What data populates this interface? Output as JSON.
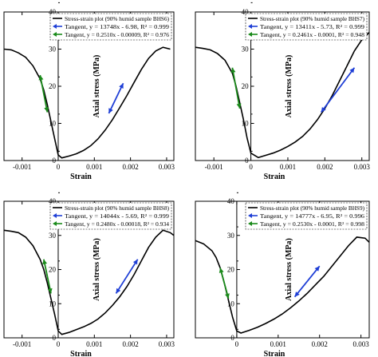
{
  "chart_data": [
    {
      "type": "line",
      "xlabel": "Strain",
      "ylabel": "Axial stress (MPa)",
      "xlim": [
        -0.0015,
        0.0032
      ],
      "ylim": [
        0,
        40
      ],
      "x_ticks": [
        "-0.001",
        "0",
        "0.001",
        "0.002",
        "0.003"
      ],
      "y_ticks": [
        "0",
        "10",
        "20",
        "30",
        "40"
      ],
      "legend": [
        "Stress-strain plot (90% humid sample BHS6)",
        "Tangent, y = 13748x - 6.98, R² = 0.999",
        "Tangent, y = 0.2510x - 0.00009, R² = 0.976"
      ],
      "series": [
        {
          "name": "Stress-strain plot (90% humid sample BHS6)",
          "color": "#000000",
          "x": [
            0.0031,
            0.0029,
            0.0027,
            0.0025,
            0.0023,
            0.0021,
            0.0019,
            0.0017,
            0.0015,
            0.0013,
            0.0011,
            0.0009,
            0.0007,
            0.0005,
            0.0003,
            0.0001,
            0.0,
            -0.0001,
            -0.0002,
            -0.0003,
            -0.0004,
            -0.0005,
            -0.0007,
            -0.0009,
            -0.0011,
            -0.0013,
            -0.0015
          ],
          "y": [
            30.0,
            30.5,
            29.5,
            27.5,
            24.5,
            21.0,
            17.5,
            14.2,
            11.0,
            8.2,
            5.8,
            4.0,
            2.7,
            1.8,
            1.2,
            0.7,
            1.5,
            6.0,
            10.5,
            15.0,
            19.0,
            22.0,
            25.5,
            27.8,
            29.0,
            29.8,
            30.0
          ]
        },
        {
          "name": "Tangent, y = 13748x - 6.98, R² = 0.999",
          "color": "#1f3fd6",
          "x": [
            0.0014,
            0.0018
          ],
          "y": [
            12.7,
            20.8
          ]
        },
        {
          "name": "Tangent, y = 0.2510x - 0.00009, R² = 0.976",
          "color": "#1a8a1a",
          "x": [
            -0.0003,
            -0.0005
          ],
          "y": [
            13.0,
            23.0
          ]
        }
      ]
    },
    {
      "type": "line",
      "xlabel": "Strain",
      "ylabel": "Axial stress (MPa)",
      "xlim": [
        -0.0015,
        0.0032
      ],
      "ylim": [
        0,
        40
      ],
      "x_ticks": [
        "-0.001",
        "0",
        "0.001",
        "0.002",
        "0.003"
      ],
      "y_ticks": [
        "0",
        "10",
        "20",
        "30",
        "40"
      ],
      "legend": [
        "Stress-strain plot (90% humid sample BHS7)",
        "Tangent, y = 13411x - 5.73, R² = 0.999",
        "Tangent, y = 0.2461x - 0.0001, R² = 0.948"
      ],
      "series": [
        {
          "name": "Stress-strain plot (90% humid sample BHS7)",
          "color": "#000000",
          "x": [
            0.0032,
            0.003,
            0.0028,
            0.0026,
            0.0024,
            0.0022,
            0.002,
            0.0018,
            0.0016,
            0.0014,
            0.0012,
            0.001,
            0.0008,
            0.0006,
            0.0004,
            0.0002,
            0.0,
            -0.0001,
            -0.0002,
            -0.0003,
            -0.0004,
            -0.0005,
            -0.0007,
            -0.0009,
            -0.0011,
            -0.0013,
            -0.0015
          ],
          "y": [
            34.5,
            32.5,
            29.5,
            25.5,
            21.5,
            17.5,
            14.0,
            11.0,
            8.5,
            6.5,
            5.0,
            3.8,
            2.8,
            2.0,
            1.4,
            0.8,
            2.0,
            6.0,
            11.0,
            15.5,
            20.0,
            23.5,
            27.0,
            28.8,
            29.8,
            30.2,
            30.5
          ]
        },
        {
          "name": "Tangent, y = 13411x - 5.73, R² = 0.999",
          "color": "#1f3fd6",
          "x": [
            0.0019,
            0.0028
          ],
          "y": [
            13.0,
            25.0
          ]
        },
        {
          "name": "Tangent, y = 0.2461x - 0.0001, R² = 0.948",
          "color": "#1a8a1a",
          "x": [
            -0.0003,
            -0.0005
          ],
          "y": [
            14.0,
            25.0
          ]
        }
      ]
    },
    {
      "type": "line",
      "xlabel": "Strain",
      "ylabel": "Axial stress (MPa)",
      "xlim": [
        -0.0015,
        0.0032
      ],
      "ylim": [
        0,
        40
      ],
      "x_ticks": [
        "-0.001",
        "0",
        "0.001",
        "0.002",
        "0.003"
      ],
      "y_ticks": [
        "0",
        "10",
        "20",
        "30",
        "40"
      ],
      "legend": [
        "Stress-strain plot (90% humid sample BHS8)",
        "Tangent, y = 14044x - 5.69, R² = 0.999",
        "Tangent, y = 0.2480x - 0.00018, R² = 0.934"
      ],
      "series": [
        {
          "name": "Stress-strain plot (90% humid sample BHS8)",
          "color": "#000000",
          "x": [
            0.0032,
            0.0031,
            0.0029,
            0.0027,
            0.0025,
            0.0023,
            0.0021,
            0.0019,
            0.0017,
            0.0015,
            0.0013,
            0.0011,
            0.0009,
            0.0007,
            0.0005,
            0.0003,
            0.0001,
            0.0,
            -0.0001,
            -0.0002,
            -0.0003,
            -0.0004,
            -0.0005,
            -0.0007,
            -0.0009,
            -0.0011,
            -0.0013,
            -0.0015
          ],
          "y": [
            30.0,
            30.8,
            31.5,
            29.5,
            26.5,
            22.5,
            18.5,
            15.0,
            12.0,
            9.5,
            7.3,
            5.5,
            4.2,
            3.2,
            2.4,
            1.6,
            1.0,
            2.0,
            7.0,
            11.5,
            16.0,
            20.0,
            23.0,
            27.0,
            29.5,
            30.8,
            31.2,
            31.5
          ]
        },
        {
          "name": "Tangent, y = 14044x - 5.69, R² = 0.999",
          "color": "#1f3fd6",
          "x": [
            0.0016,
            0.0022
          ],
          "y": [
            13.0,
            23.0
          ]
        },
        {
          "name": "Tangent, y = 0.2480x - 0.00018, R² = 0.934",
          "color": "#1a8a1a",
          "x": [
            -0.0002,
            -0.0004
          ],
          "y": [
            13.0,
            23.0
          ]
        }
      ]
    },
    {
      "type": "line",
      "xlabel": "Strain",
      "ylabel": "Axial stress (MPa)",
      "xlim": [
        -0.001,
        0.0032
      ],
      "ylim": [
        0,
        40
      ],
      "x_ticks": [
        "0",
        "0.001",
        "0.002",
        "0.003"
      ],
      "y_ticks": [
        "0",
        "10",
        "20",
        "30",
        "40"
      ],
      "legend": [
        "Stress-strain plot (90% humid sample BHS9)",
        "Tangent, y = 14777x - 6.95, R² = 0.996",
        "Tangent, y = 0.2530x - 0.0001, R² = 0.998"
      ],
      "series": [
        {
          "name": "Stress-strain plot (90% humid sample BHS9)",
          "color": "#000000",
          "x": [
            0.0032,
            0.0031,
            0.0029,
            0.0027,
            0.0025,
            0.0023,
            0.0021,
            0.0019,
            0.0017,
            0.0015,
            0.0013,
            0.0011,
            0.0009,
            0.0007,
            0.0005,
            0.0003,
            0.0001,
            0.0,
            -0.0001,
            -0.0002,
            -0.0003,
            -0.0004,
            -0.0005,
            -0.0006,
            -0.0008,
            -0.001
          ],
          "y": [
            28.0,
            29.2,
            29.5,
            27.0,
            24.0,
            21.0,
            18.0,
            15.5,
            13.0,
            10.8,
            8.8,
            7.0,
            5.5,
            4.2,
            3.1,
            2.2,
            1.4,
            2.0,
            6.0,
            11.0,
            16.0,
            20.5,
            23.5,
            25.5,
            27.5,
            28.5
          ]
        },
        {
          "name": "Tangent, y = 14777x - 6.95, R² = 0.996",
          "color": "#1f3fd6",
          "x": [
            0.0014,
            0.002
          ],
          "y": [
            12.0,
            21.0
          ]
        },
        {
          "name": "Tangent, y = 0.2530x - 0.0001, R² = 0.998",
          "color": "#1a8a1a",
          "x": [
            -0.0002,
            -0.0004
          ],
          "y": [
            11.5,
            20.5
          ]
        }
      ]
    }
  ]
}
